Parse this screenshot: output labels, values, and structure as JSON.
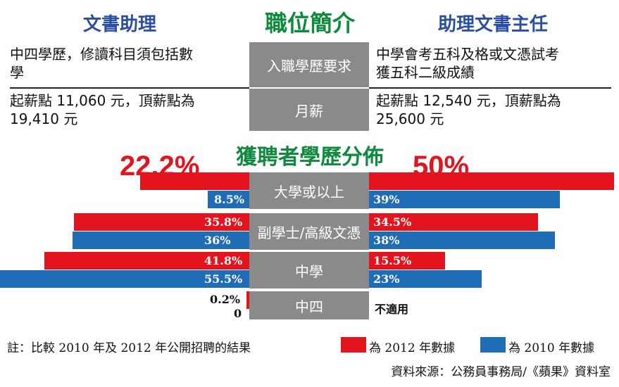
{
  "header": {
    "title": "職位簡介",
    "left_col": "文書助理",
    "right_col": "助理文書主任"
  },
  "rows": [
    {
      "label": "入職學歷要求",
      "left": [
        "中四學歷，修讀科目須包括數",
        "學"
      ],
      "right": [
        "中學會考五科及格或文憑試考",
        "獲五科二級成績"
      ]
    },
    {
      "label": "月薪",
      "left": [
        "起薪點 11,060 元，頂薪點為",
        "19,410 元"
      ],
      "right": [
        "起薪點 12,540 元，頂薪點為",
        "25,600 元"
      ]
    }
  ],
  "chart_data": {
    "type": "bar",
    "title": "獲聘者學歷分佈",
    "categories": [
      "大學或以上",
      "副學士/高級文憑",
      "中學",
      "中四"
    ],
    "left_group": "文書助理",
    "right_group": "助理文書主任",
    "series": [
      {
        "name": "為 2012 年數據",
        "color": "#e3141d",
        "left_labels": [
          "22.2%",
          "35.8%",
          "41.8%",
          "0.2%"
        ],
        "right_labels": [
          "50%",
          "34.5%",
          "15.5%",
          "不適用"
        ],
        "left": [
          22.2,
          35.8,
          41.8,
          0.2
        ],
        "right": [
          50,
          34.5,
          15.5,
          null
        ]
      },
      {
        "name": "為 2010 年數據",
        "color": "#1f6db7",
        "left_labels": [
          "8.5%",
          "36%",
          "55.5%",
          "0"
        ],
        "right_labels": [
          "39%",
          "38%",
          "23%",
          ""
        ],
        "left": [
          8.5,
          36,
          55.5,
          0
        ],
        "right": [
          39,
          38,
          23,
          null
        ]
      }
    ],
    "legend": [
      "為 2012 年數據",
      "為 2010 年數據"
    ]
  },
  "footer": {
    "note": "註：比較 2010 年及 2012 年公開招聘的結果",
    "source": "資料來源：公務員事務局/《蘋果》資料室"
  }
}
